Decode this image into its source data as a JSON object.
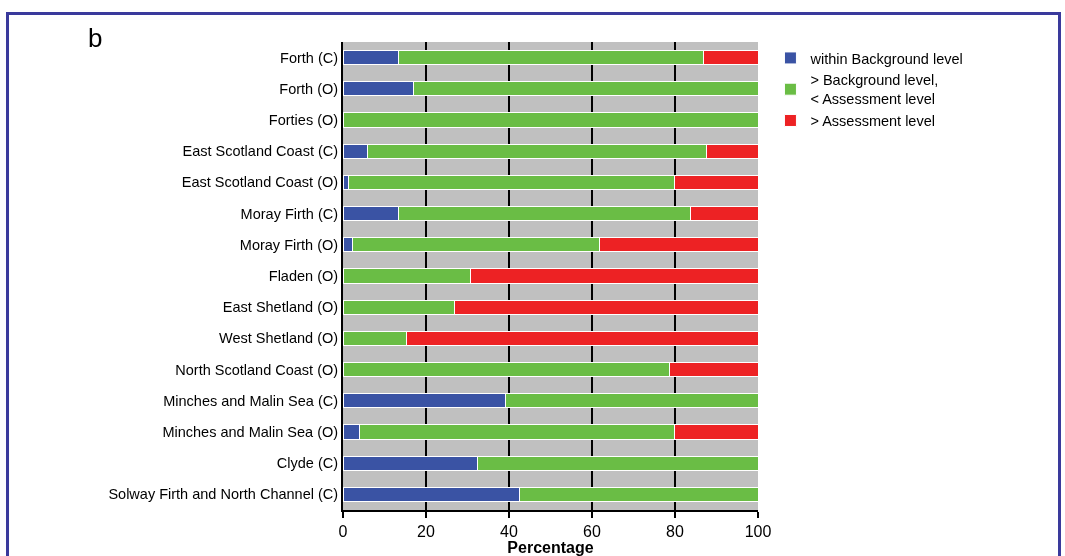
{
  "chart_data": {
    "type": "bar",
    "orientation": "horizontal",
    "stacked": true,
    "xlabel": "Percentage",
    "annotations": [
      "b"
    ],
    "categories": [
      "Forth (C)",
      "Forth (O)",
      "Forties (O)",
      "East Scotland Coast (C)",
      "East Scotland Coast (O)",
      "Moray Firth (C)",
      "Moray Firth (O)",
      "Fladen (O)",
      "East Shetland (O)",
      "West Shetland (O)",
      "North Scotland Coast (O)",
      "Minches and Malin Sea (C)",
      "Minches and Malin Sea (O)",
      "Clyde (C)",
      "Solway Firth and North Channel (C)"
    ],
    "series": [
      {
        "name": "within Background level",
        "color": "#3a53a4",
        "values": [
          13.3,
          17.1,
          0,
          5.9,
          1.4,
          13.3,
          2.4,
          0,
          0,
          0,
          0,
          39.2,
          3.9,
          32.5,
          42.5
        ]
      },
      {
        "name": "> Background level,\n< Assessment level",
        "color": "#6abd45",
        "values": [
          73.5,
          82.9,
          100,
          81.8,
          78.4,
          70.4,
          59.4,
          30.7,
          26.8,
          15.4,
          78.6,
          60.8,
          75.9,
          67.5,
          57.5
        ]
      },
      {
        "name": "> Assessment level",
        "color": "#ed2224",
        "values": [
          13.2,
          0,
          0,
          12.3,
          20.2,
          16.3,
          38.2,
          69.3,
          73.2,
          84.6,
          21.4,
          0,
          20.2,
          0,
          0
        ]
      }
    ],
    "xlim": [
      0,
      100
    ],
    "xticks": [
      0,
      20,
      40,
      60,
      80,
      100
    ],
    "grid": "x",
    "legend": "top right"
  }
}
